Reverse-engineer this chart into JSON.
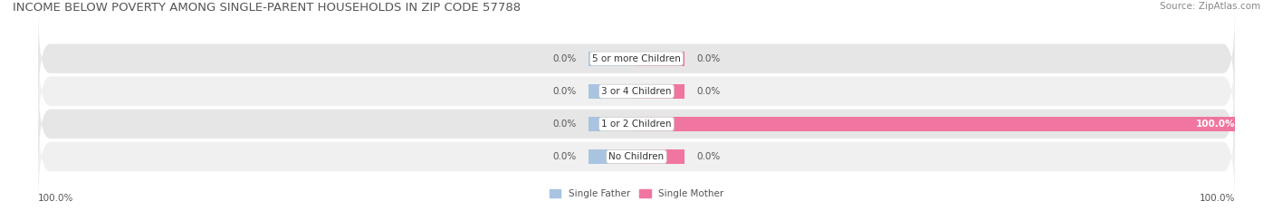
{
  "title": "INCOME BELOW POVERTY AMONG SINGLE-PARENT HOUSEHOLDS IN ZIP CODE 57788",
  "source": "Source: ZipAtlas.com",
  "categories": [
    "No Children",
    "1 or 2 Children",
    "3 or 4 Children",
    "5 or more Children"
  ],
  "father_values": [
    0.0,
    0.0,
    0.0,
    0.0
  ],
  "mother_values": [
    0.0,
    100.0,
    0.0,
    0.0
  ],
  "father_color": "#a8c4e0",
  "mother_color": "#f075a0",
  "row_bg_even": "#f0f0f0",
  "row_bg_odd": "#e6e6e6",
  "axis_min": -100,
  "axis_max": 100,
  "stub_size": 8,
  "father_label": "Single Father",
  "mother_label": "Single Mother",
  "bottom_left_label": "100.0%",
  "bottom_right_label": "100.0%",
  "title_fontsize": 9.5,
  "source_fontsize": 7.5,
  "label_fontsize": 7.5,
  "cat_fontsize": 7.5,
  "title_color": "#555555",
  "source_color": "#888888",
  "label_color": "#555555",
  "cat_label_color": "#333333"
}
